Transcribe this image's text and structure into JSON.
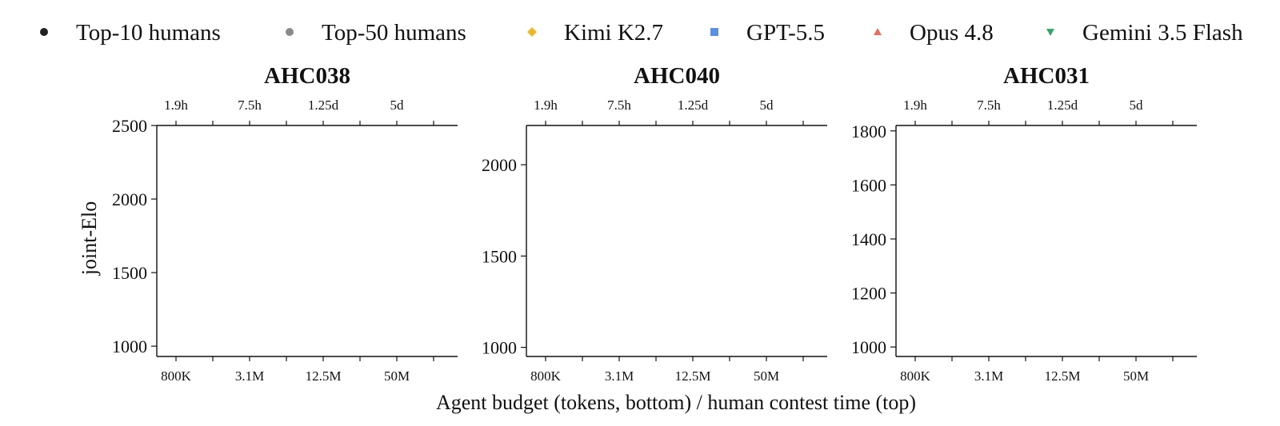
{
  "legend": [
    {
      "label": "Top-10 humans",
      "marker": "circle",
      "color": "#222222"
    },
    {
      "label": "Top-50 humans",
      "marker": "circle",
      "color": "#8a8a8a"
    },
    {
      "label": "Kimi K2.7",
      "marker": "diamond",
      "color": "#e8b830"
    },
    {
      "label": "GPT-5.5",
      "marker": "square",
      "color": "#5b8fe0"
    },
    {
      "label": "Opus 4.8",
      "marker": "triangle-up",
      "color": "#e07060"
    },
    {
      "label": "Gemini 3.5 Flash",
      "marker": "triangle-down",
      "color": "#3aa36a"
    }
  ],
  "labels": {
    "ylabel": "joint-Elo",
    "xlabel": "Agent budget (tokens, bottom) / human contest time (top)"
  },
  "chart_data": [
    {
      "type": "scatter",
      "title": "AHC038",
      "x_ticks_bottom": [
        "800K",
        "3.1M",
        "12.5M",
        "50M"
      ],
      "x_ticks_top": [
        "1.9h",
        "7.5h",
        "1.25d",
        "5d"
      ],
      "y_ticks": [
        1000,
        1500,
        2000,
        2500
      ],
      "ylim": [
        930,
        2500
      ],
      "series": []
    },
    {
      "type": "scatter",
      "title": "AHC040",
      "x_ticks_bottom": [
        "800K",
        "3.1M",
        "12.5M",
        "50M"
      ],
      "x_ticks_top": [
        "1.9h",
        "7.5h",
        "1.25d",
        "5d"
      ],
      "y_ticks": [
        1000,
        1500,
        2000
      ],
      "ylim": [
        950,
        2215
      ],
      "series": []
    },
    {
      "type": "scatter",
      "title": "AHC031",
      "x_ticks_bottom": [
        "800K",
        "3.1M",
        "12.5M",
        "50M"
      ],
      "x_ticks_top": [
        "1.9h",
        "7.5h",
        "1.25d",
        "5d"
      ],
      "y_ticks": [
        1000,
        1200,
        1400,
        1600,
        1800
      ],
      "ylim": [
        965,
        1820
      ],
      "series": []
    }
  ]
}
